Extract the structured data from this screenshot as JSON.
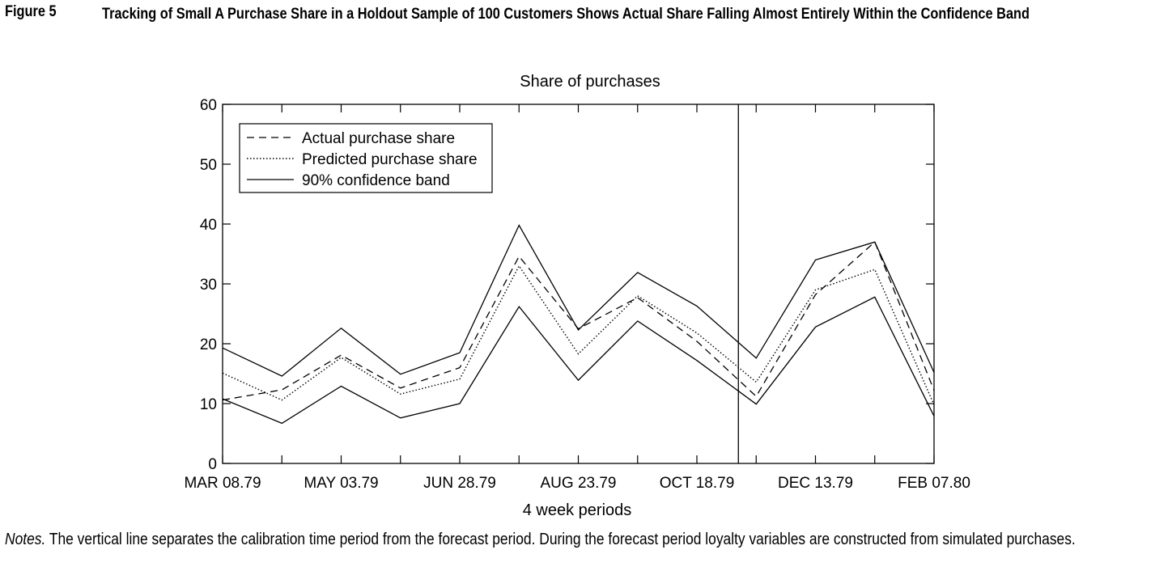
{
  "figure": {
    "label": "Figure 5",
    "title": "Tracking of Small A Purchase Share in a Holdout Sample of 100 Customers Shows Actual Share Falling Almost Entirely Within the Confidence Band"
  },
  "notes": {
    "label": "Notes.",
    "text": " The vertical line separates the calibration time period from the forecast period. During the forecast period loyalty variables are constructed from simulated purchases."
  },
  "chart_data": {
    "type": "line",
    "title": "Share of purchases",
    "xlabel": "4 week periods",
    "ylabel": "",
    "ylim": [
      0,
      60
    ],
    "yticks": [
      0,
      10,
      20,
      30,
      40,
      50,
      60
    ],
    "x_tick_labels": [
      "MAR 08.79",
      "MAY 03.79",
      "JUN 28.79",
      "AUG 23.79",
      "OCT 18.79",
      "DEC 13.79",
      "FEB 07.80"
    ],
    "x_tick_label_positions": [
      1,
      3,
      5,
      7,
      9,
      11,
      13
    ],
    "x": [
      1,
      2,
      3,
      4,
      5,
      6,
      7,
      8,
      9,
      10,
      11,
      12,
      13
    ],
    "xlim": [
      1,
      13
    ],
    "calibration_split_x": 9.7,
    "legend_position": "top-left",
    "series": [
      {
        "name": "Actual purchase share",
        "style": "dashed",
        "values": [
          10.6,
          12.3,
          18.1,
          12.6,
          16.0,
          34.6,
          22.5,
          27.7,
          20.4,
          11.2,
          28.2,
          37.0,
          12.2
        ]
      },
      {
        "name": "Predicted purchase share",
        "style": "dotted",
        "values": [
          15.1,
          10.6,
          17.7,
          11.6,
          14.1,
          33.0,
          18.3,
          28.0,
          21.8,
          13.6,
          29.0,
          32.4,
          9.8
        ]
      },
      {
        "name": "90% confidence band",
        "style": "solid",
        "values": [
          19.3,
          14.6,
          22.6,
          14.9,
          18.5,
          39.8,
          22.3,
          31.9,
          26.3,
          17.6,
          34.0,
          37.0,
          15.2
        ]
      },
      {
        "name": "",
        "style": "solid",
        "values": [
          10.8,
          6.7,
          12.9,
          7.6,
          10.0,
          26.2,
          13.9,
          23.8,
          17.2,
          9.9,
          22.8,
          27.8,
          7.9
        ]
      }
    ]
  }
}
